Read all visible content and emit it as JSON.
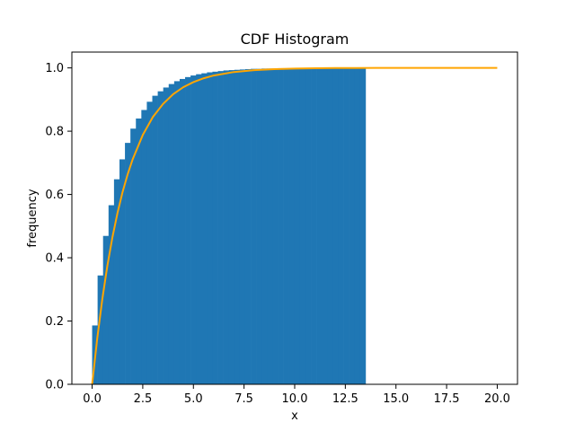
{
  "chart_data": {
    "type": "bar",
    "title": "CDF Histogram",
    "xlabel": "x",
    "ylabel": "frequency",
    "xlim": [
      -1.0,
      21.0
    ],
    "ylim": [
      0.0,
      1.05
    ],
    "xticks": [
      0.0,
      2.5,
      5.0,
      7.5,
      10.0,
      12.5,
      15.0,
      17.5,
      20.0
    ],
    "xtick_labels": [
      "0.0",
      "2.5",
      "5.0",
      "7.5",
      "10.0",
      "12.5",
      "15.0",
      "17.5",
      "20.0"
    ],
    "yticks": [
      0.0,
      0.2,
      0.4,
      0.6,
      0.8,
      1.0
    ],
    "ytick_labels": [
      "0.0",
      "0.2",
      "0.4",
      "0.6",
      "0.8",
      "1.0"
    ],
    "grid": false,
    "histogram": {
      "name": "",
      "color": "#1f77b4",
      "bin_width": 0.27,
      "bin_start": 0.0,
      "values": [
        0.186,
        0.344,
        0.469,
        0.566,
        0.648,
        0.711,
        0.763,
        0.808,
        0.84,
        0.867,
        0.893,
        0.912,
        0.926,
        0.938,
        0.949,
        0.958,
        0.965,
        0.971,
        0.976,
        0.98,
        0.983,
        0.986,
        0.988,
        0.99,
        0.992,
        0.993,
        0.994,
        0.995,
        0.996,
        0.997,
        0.997,
        0.998,
        0.998,
        0.998,
        0.999,
        0.999,
        0.999,
        0.999,
        0.999,
        1.0,
        1.0,
        1.0,
        1.0,
        1.0,
        1.0,
        1.0,
        1.0,
        1.0,
        1.0,
        1.0
      ]
    },
    "cdf_curve": {
      "name": "",
      "color": "#ffa500",
      "x": [
        0,
        0.25,
        0.5,
        0.75,
        1,
        1.25,
        1.5,
        1.75,
        2,
        2.5,
        3,
        3.5,
        4,
        4.5,
        5,
        5.5,
        6,
        7,
        8,
        9,
        10,
        11,
        12,
        13,
        14,
        15,
        16,
        17,
        18,
        19,
        20
      ],
      "y": [
        0.0,
        0.144,
        0.268,
        0.374,
        0.464,
        0.541,
        0.607,
        0.663,
        0.711,
        0.788,
        0.845,
        0.886,
        0.917,
        0.939,
        0.955,
        0.967,
        0.976,
        0.987,
        0.993,
        0.996,
        0.998,
        0.999,
        0.9995,
        0.9998,
        0.9999,
        1.0,
        1.0,
        1.0,
        1.0,
        1.0,
        1.0
      ]
    }
  }
}
